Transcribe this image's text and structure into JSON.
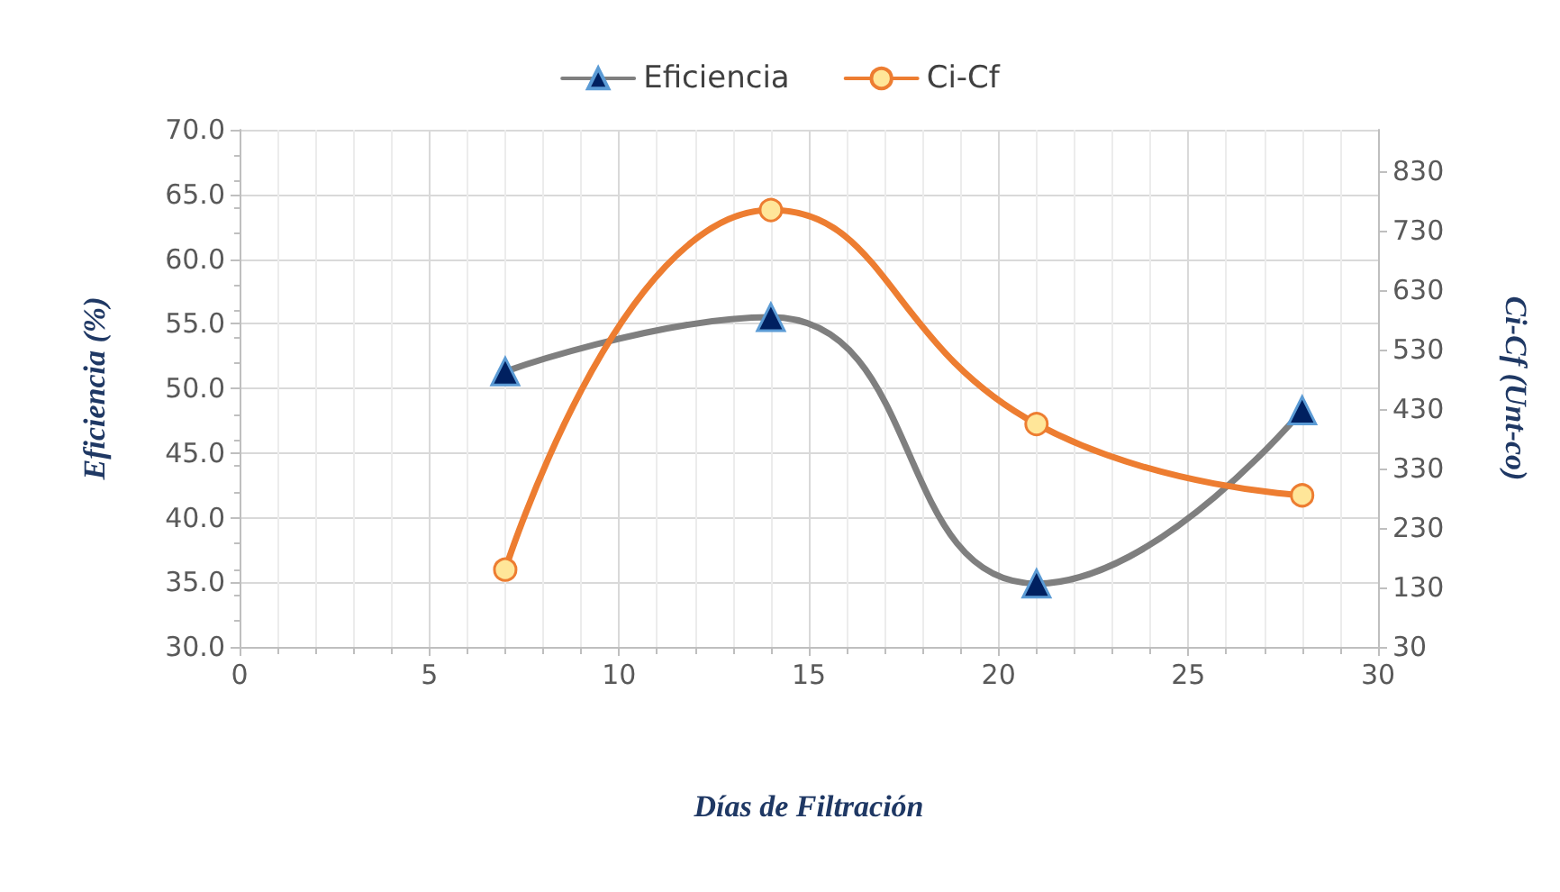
{
  "chart_data": {
    "type": "line",
    "xlabel": "Días de Filtración",
    "ylabel": "Eficiencia (%)",
    "y2label": "Ci-Cf (Unt-co)",
    "xlim": [
      0,
      30
    ],
    "xticks": [
      0,
      5,
      10,
      15,
      20,
      25,
      30
    ],
    "ylim": [
      30,
      70
    ],
    "yticks": [
      {
        "value": 30,
        "label": "30.0"
      },
      {
        "value": 35,
        "label": "35.0"
      },
      {
        "value": 40,
        "label": "40.0"
      },
      {
        "value": 45,
        "label": "45.0"
      },
      {
        "value": 50,
        "label": "50.0"
      },
      {
        "value": 55,
        "label": "55.0"
      },
      {
        "value": 60,
        "label": "60.0"
      },
      {
        "value": 65,
        "label": "65.0"
      },
      {
        "value": 70,
        "label": "70.0"
      }
    ],
    "y2lim": [
      30,
      900
    ],
    "y2ticks": [
      30,
      130,
      230,
      330,
      430,
      530,
      630,
      730,
      830
    ],
    "grid": true,
    "legend": "top",
    "series": [
      {
        "name": "Eficiencia",
        "color": "#7f7f7f",
        "marker": "triangle",
        "x": [
          7,
          14,
          21,
          28
        ],
        "values": [
          51.3,
          55.5,
          34.9,
          48.3
        ]
      },
      {
        "name": "Ci-Cf",
        "color": "#ed7d31",
        "marker": "circle",
        "axis": "y2",
        "x": [
          7,
          14,
          21,
          28
        ],
        "values": [
          160,
          765,
          405,
          285
        ]
      }
    ]
  }
}
